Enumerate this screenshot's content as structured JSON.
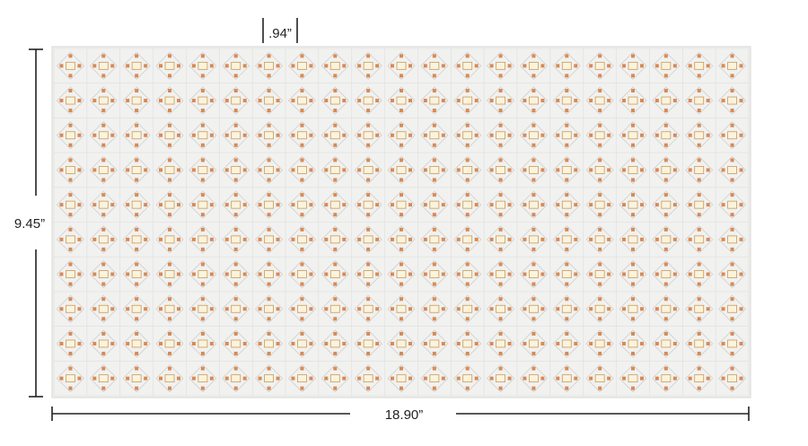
{
  "dimensions": {
    "cell_width": ".94”",
    "height": "9.45”",
    "width": "18.90”"
  }
}
